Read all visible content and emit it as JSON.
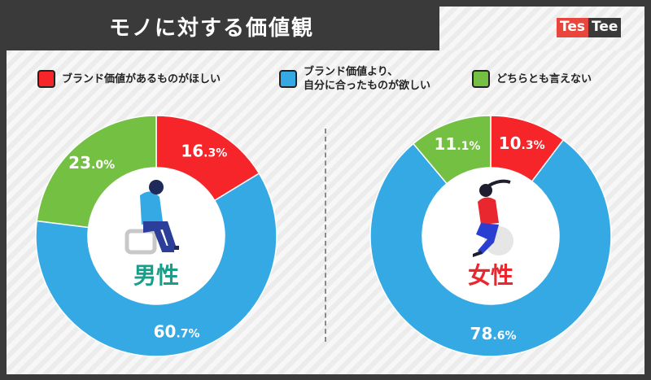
{
  "title": "モノに対する価値観",
  "logo": {
    "part1": "Tes",
    "part2": "Tee"
  },
  "legend": [
    {
      "label": "ブランド価値があるものがほしい",
      "color": "#f5252a"
    },
    {
      "label_line1": "ブランド価値より、",
      "label_line2": "自分に合ったものが欲しい",
      "color": "#35a9e3"
    },
    {
      "label": "どちらとも言えない",
      "color": "#74c043"
    }
  ],
  "chart_data": [
    {
      "type": "pie",
      "center_label": "男性",
      "center_label_color": "#1a9e8a",
      "categories": [
        "ブランド価値があるものがほしい",
        "ブランド価値より、自分に合ったものが欲しい",
        "どちらとも言えない"
      ],
      "values": [
        16.3,
        60.7,
        23.0
      ],
      "colors": [
        "#f5252a",
        "#35a9e3",
        "#74c043"
      ],
      "data_labels": [
        {
          "int": "16",
          "dec": ".3%"
        },
        {
          "int": "60",
          "dec": ".7%"
        },
        {
          "int": "23",
          "dec": ".0%"
        }
      ]
    },
    {
      "type": "pie",
      "center_label": "女性",
      "center_label_color": "#e8282e",
      "categories": [
        "ブランド価値があるものがほしい",
        "ブランド価値より、自分に合ったものが欲しい",
        "どちらとも言えない"
      ],
      "values": [
        10.3,
        78.6,
        11.1
      ],
      "colors": [
        "#f5252a",
        "#35a9e3",
        "#74c043"
      ],
      "data_labels": [
        {
          "int": "10",
          "dec": ".3%"
        },
        {
          "int": "78",
          "dec": ".6%"
        },
        {
          "int": "11",
          "dec": ".1%"
        }
      ]
    }
  ]
}
